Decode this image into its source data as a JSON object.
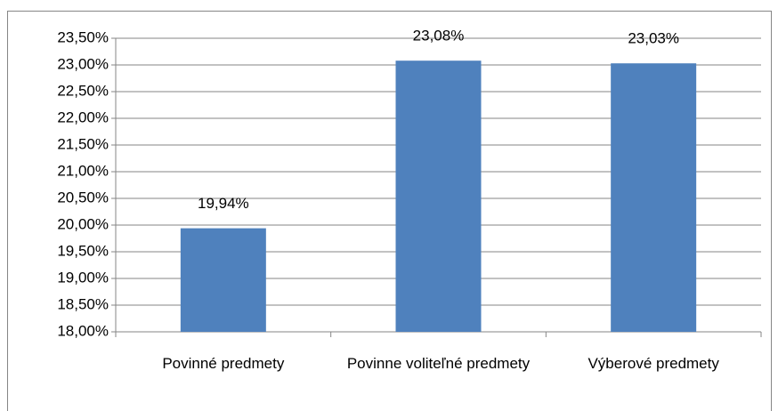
{
  "chart_data": {
    "type": "bar",
    "categories": [
      "Povinné predmety",
      "Povinne voliteľné predmety",
      "Výberové predmety"
    ],
    "values": [
      19.94,
      23.08,
      23.03
    ],
    "value_labels": [
      "19,94%",
      "23,08%",
      "23,03%"
    ],
    "color": "#4f81bd",
    "ylim": [
      18,
      23.5
    ],
    "yticks": [
      {
        "value": 18,
        "label": "18,00%"
      },
      {
        "value": 18.5,
        "label": "18,50%"
      },
      {
        "value": 19,
        "label": "19,00%"
      },
      {
        "value": 19.5,
        "label": "19,50%"
      },
      {
        "value": 20,
        "label": "20,00%"
      },
      {
        "value": 20.5,
        "label": "20,50%"
      },
      {
        "value": 21,
        "label": "21,00%"
      },
      {
        "value": 21.5,
        "label": "21,50%"
      },
      {
        "value": 22,
        "label": "22,00%"
      },
      {
        "value": 22.5,
        "label": "22,50%"
      },
      {
        "value": 23,
        "label": "23,00%"
      },
      {
        "value": 23.5,
        "label": "23,50%"
      }
    ],
    "grid": true
  }
}
